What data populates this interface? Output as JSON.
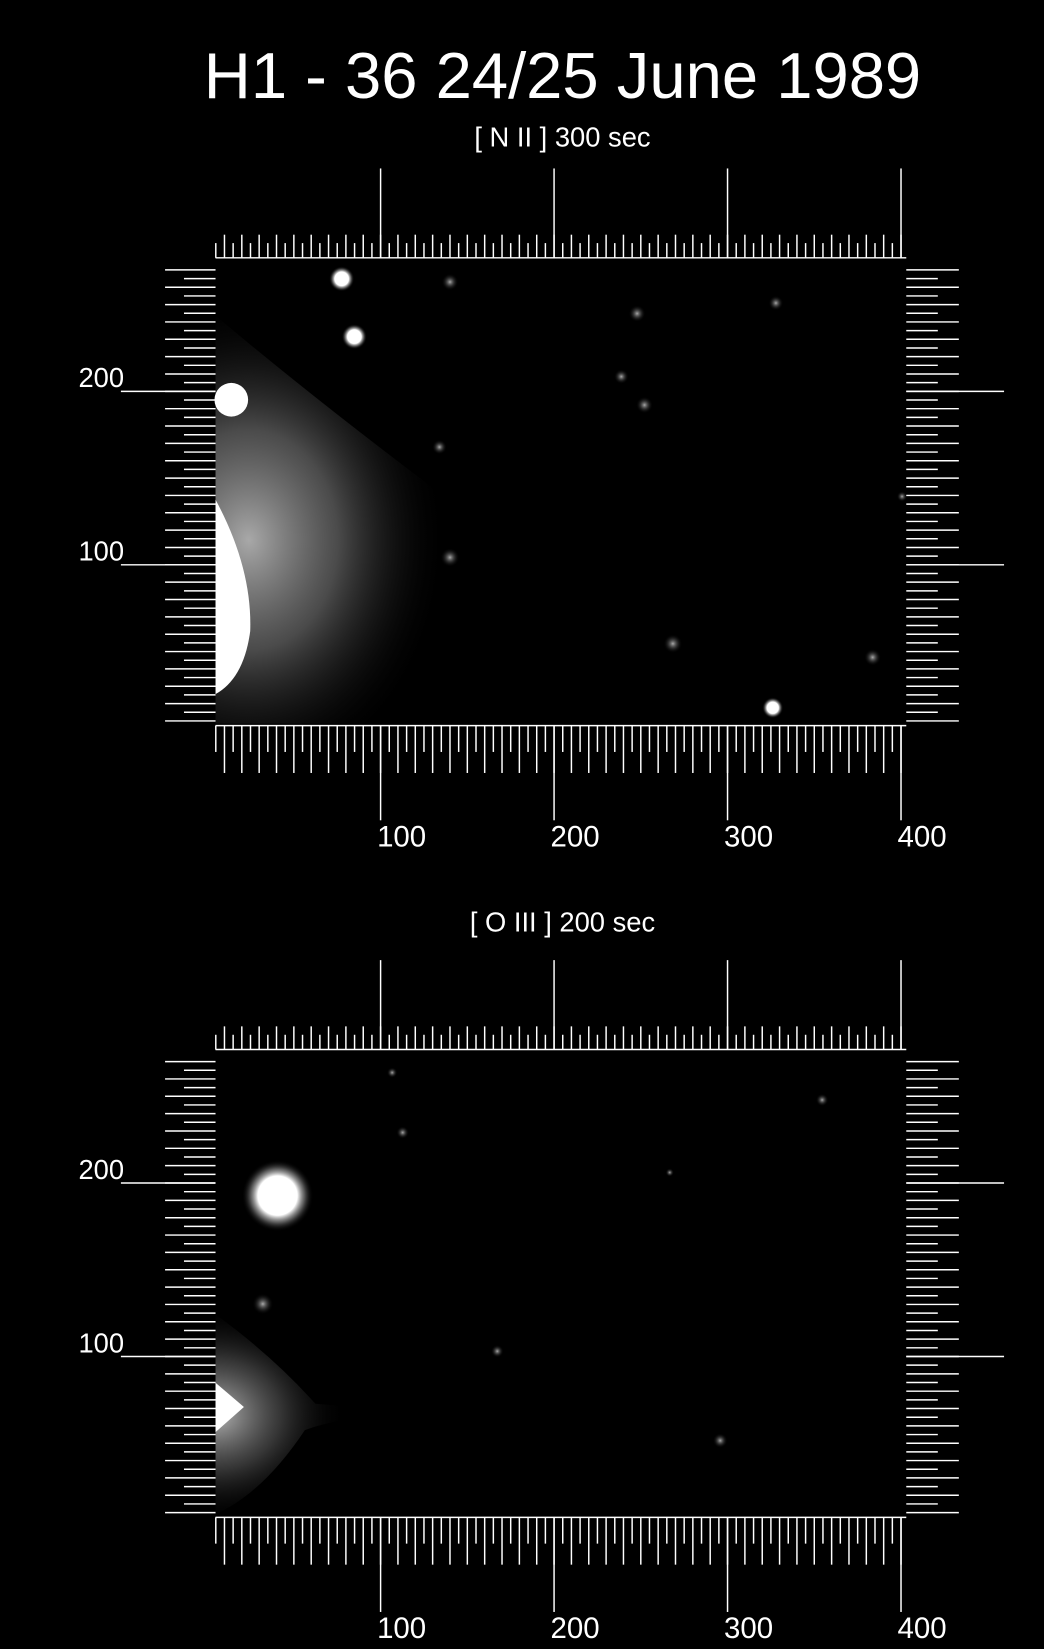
{
  "title": "H1 - 36 24/25 June 1989",
  "panels": [
    {
      "label": "[ N II ] 300 sec",
      "xticks": [
        100,
        200,
        300,
        400
      ],
      "yticks": [
        100,
        200
      ]
    },
    {
      "label": "[ O III ] 200 sec",
      "xticks": [
        100,
        200,
        300,
        400
      ],
      "yticks": [
        100,
        200
      ]
    }
  ]
}
